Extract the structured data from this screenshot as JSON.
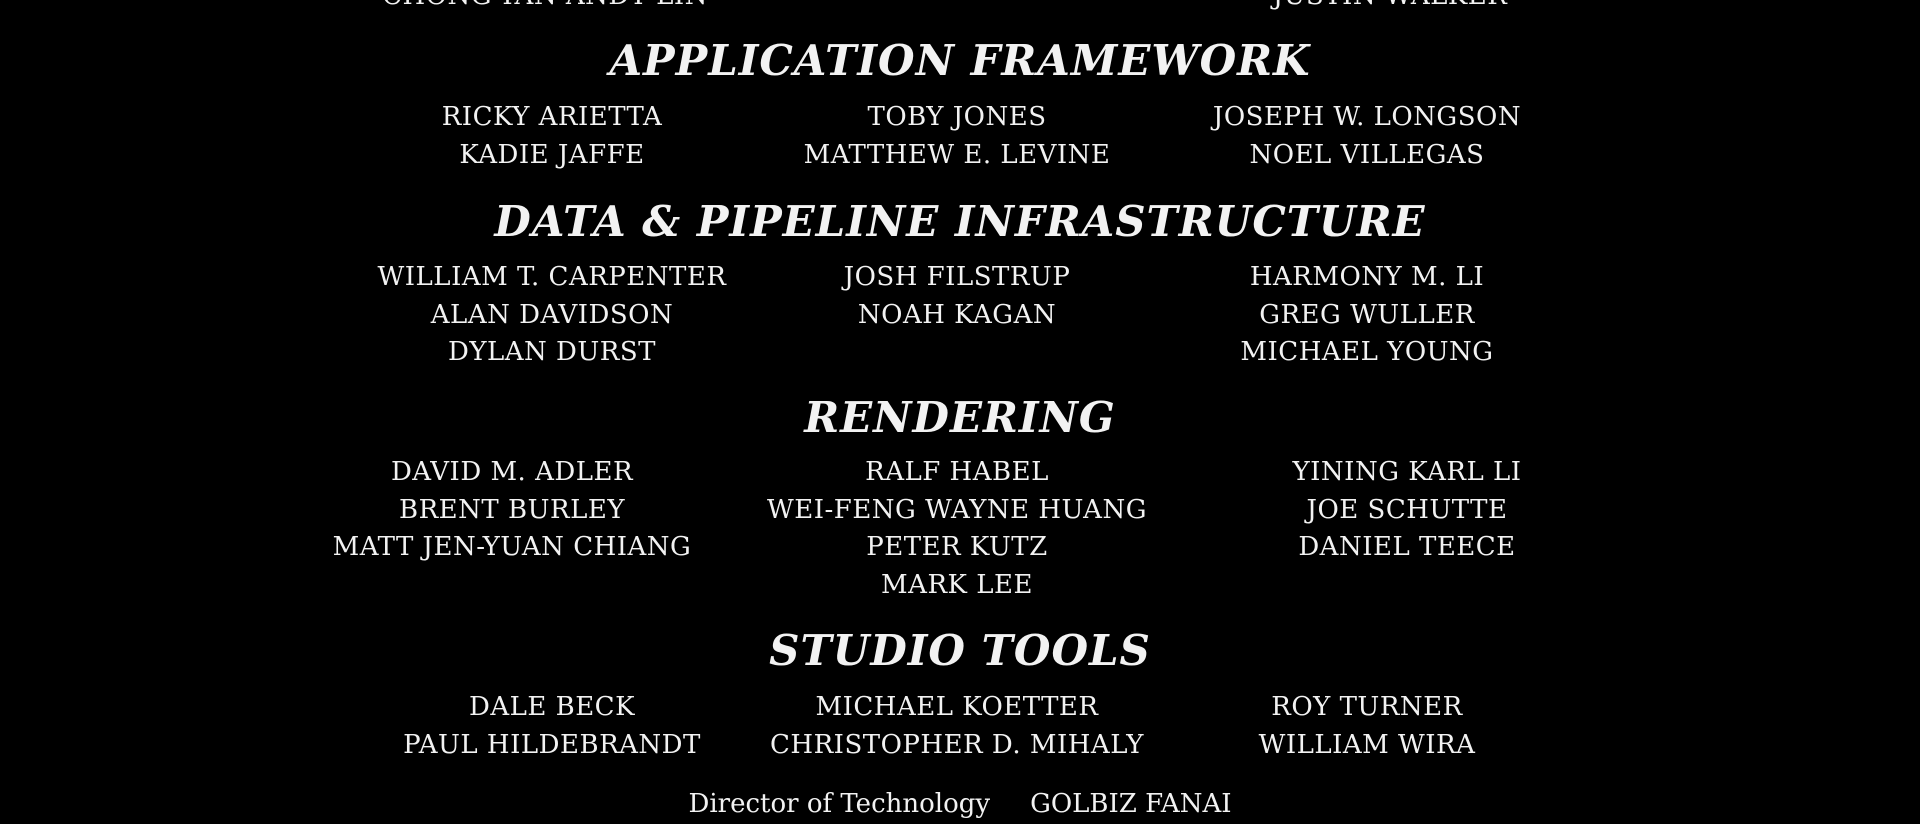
{
  "top_partial": {
    "left": "CHONG-YAN ANDY LIN",
    "right": "JUSTIN WALKER"
  },
  "sections": [
    {
      "title": "APPLICATION FRAMEWORK",
      "columns": [
        [
          "RICKY ARIETTA",
          "KADIE JAFFE"
        ],
        [
          "TOBY JONES",
          "MATTHEW E. LEVINE"
        ],
        [
          "JOSEPH W. LONGSON",
          "NOEL VILLEGAS"
        ]
      ]
    },
    {
      "title": "DATA & PIPELINE INFRASTRUCTURE",
      "columns": [
        [
          "WILLIAM T. CARPENTER",
          "ALAN DAVIDSON",
          "DYLAN DURST"
        ],
        [
          "JOSH FILSTRUP",
          "NOAH KAGAN"
        ],
        [
          "HARMONY M. LI",
          "GREG WULLER",
          "MICHAEL YOUNG"
        ]
      ]
    },
    {
      "title": "RENDERING",
      "columns": [
        [
          "DAVID M. ADLER",
          "BRENT BURLEY",
          "MATT JEN-YUAN CHIANG"
        ],
        [
          "RALF HABEL",
          "WEI-FENG WAYNE HUANG",
          "PETER KUTZ",
          "MARK LEE"
        ],
        [
          "YINING KARL LI",
          "JOE SCHUTTE",
          "DANIEL TEECE"
        ]
      ]
    },
    {
      "title": "STUDIO TOOLS",
      "columns": [
        [
          "DALE BECK",
          "PAUL HILDEBRANDT"
        ],
        [
          "MICHAEL KOETTER",
          "CHRISTOPHER D. MIHALY"
        ],
        [
          "ROY TURNER",
          "WILLIAM WIRA"
        ]
      ]
    }
  ],
  "bottom_partial": {
    "role": "Director of Technology",
    "name": "GOLBIZ FANAI"
  }
}
